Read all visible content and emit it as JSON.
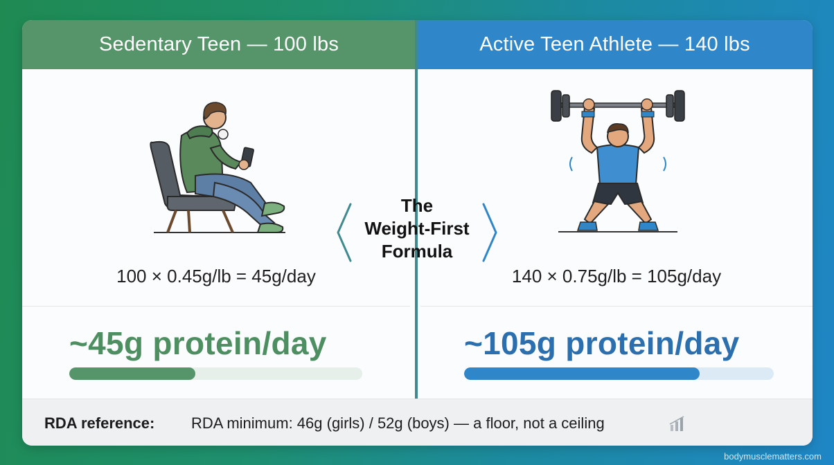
{
  "panels": {
    "left": {
      "header": "Sedentary Teen — 100 lbs",
      "formula": "100 × 0.45g/lb = 45g/day",
      "result": "~45g protein/day",
      "bar_fraction": 0.43,
      "color": "#56956a"
    },
    "right": {
      "header": "Active Teen Athlete — 140 lbs",
      "formula": "140 × 0.75g/lb = 105g/day",
      "result": "~105g protein/day",
      "bar_fraction": 0.76,
      "color": "#2f86c9"
    }
  },
  "center": {
    "line1": "The",
    "line2": "Weight-First",
    "line3": "Formula"
  },
  "footer": {
    "label": "RDA reference:",
    "text": "RDA minimum: 46g (girls) / 52g (boys) — a floor, not a ceiling",
    "icon": "bar-chart-icon"
  },
  "watermark": "bodymusclematters.com",
  "icons": {
    "left_illustration": "teen-on-phone-in-chair-icon",
    "right_illustration": "athlete-lifting-barbell-icon"
  }
}
